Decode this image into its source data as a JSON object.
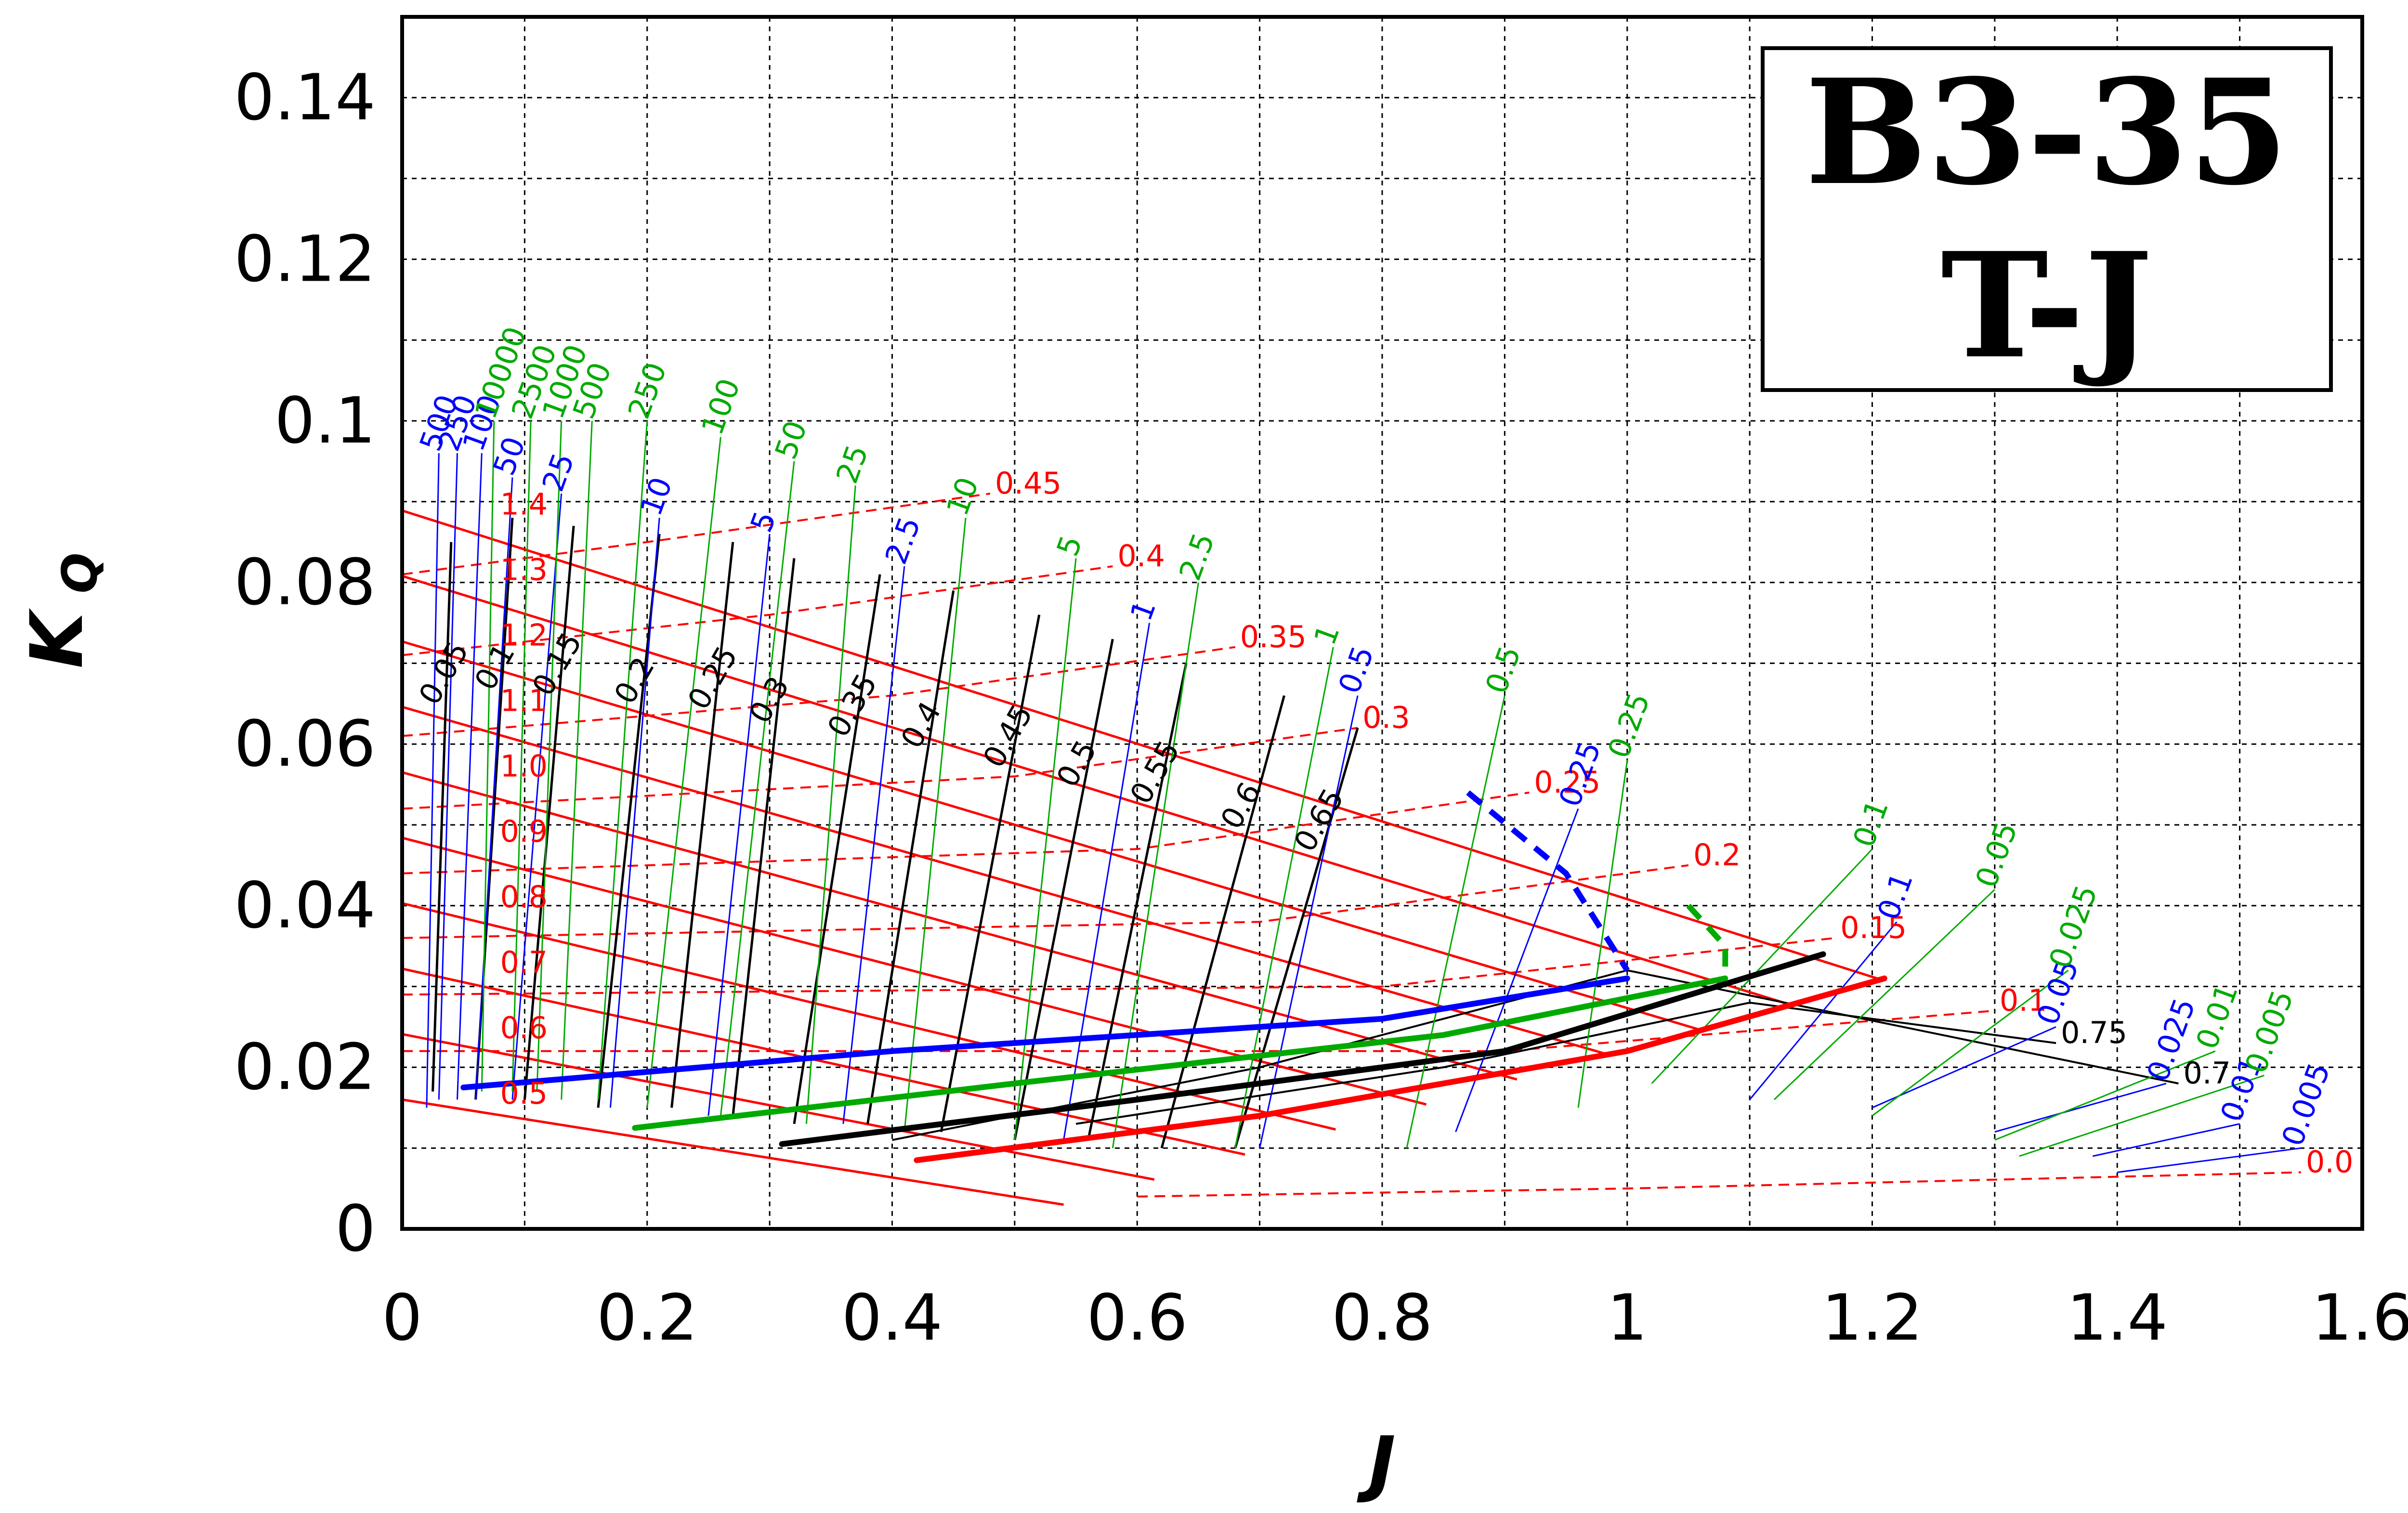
{
  "chart_data": {
    "type": "line",
    "title": [
      "B3-35",
      "T-J"
    ],
    "xlabel": "J",
    "ylabel_main": "K",
    "ylabel_sub": "Q",
    "xlim": [
      0,
      1.6
    ],
    "ylim": [
      0,
      0.15
    ],
    "xticks": [
      "0",
      "0.2",
      "0.4",
      "0.6",
      "0.8",
      "1",
      "1.2",
      "1.4",
      "1.6"
    ],
    "yticks": [
      "0",
      "0.02",
      "0.04",
      "0.06",
      "0.08",
      "0.1",
      "0.12",
      "0.14"
    ],
    "grid": true,
    "colors": {
      "pitch": "#ff0000",
      "efficiency": "#000000",
      "bp": "#0000ff",
      "delta": "#00aa00"
    },
    "pitch_solid_values": [
      0.5,
      0.6,
      0.7,
      0.8,
      0.9,
      1.0,
      1.1,
      1.2,
      1.3,
      1.4
    ],
    "pitch_solid_labels": [
      "0.5",
      "0.6",
      "0.7",
      "0.8",
      "0.9",
      "1.0",
      "1.1",
      "1.2",
      "1.3",
      "1.4"
    ],
    "slip_lines": [
      {
        "label": "0.45",
        "x": [
          0.0,
          0.2,
          0.48
        ],
        "y": [
          0.081,
          0.085,
          0.091
        ]
      },
      {
        "label": "0.4",
        "x": [
          0.0,
          0.3,
          0.58
        ],
        "y": [
          0.071,
          0.076,
          0.082
        ]
      },
      {
        "label": "0.35",
        "x": [
          0.0,
          0.4,
          0.68
        ],
        "y": [
          0.061,
          0.066,
          0.072
        ]
      },
      {
        "label": "0.3",
        "x": [
          0.0,
          0.5,
          0.78
        ],
        "y": [
          0.052,
          0.056,
          0.062
        ]
      },
      {
        "label": "0.25",
        "x": [
          0.0,
          0.6,
          0.92
        ],
        "y": [
          0.044,
          0.047,
          0.054
        ]
      },
      {
        "label": "0.2",
        "x": [
          0.0,
          0.7,
          1.05
        ],
        "y": [
          0.036,
          0.038,
          0.045
        ]
      },
      {
        "label": "0.15",
        "x": [
          0.0,
          0.8,
          1.17
        ],
        "y": [
          0.029,
          0.03,
          0.036
        ]
      },
      {
        "label": "0.1",
        "x": [
          0.0,
          0.9,
          1.3
        ],
        "y": [
          0.022,
          0.022,
          0.027
        ]
      },
      {
        "label": "0.0",
        "x": [
          0.6,
          1.0,
          1.55
        ],
        "y": [
          0.004,
          0.005,
          0.007
        ]
      }
    ],
    "efficiency_curves": [
      {
        "label": "0.05",
        "x": [
          0.025,
          0.04
        ],
        "y": [
          0.017,
          0.085
        ]
      },
      {
        "label": "0.1",
        "x": [
          0.06,
          0.09
        ],
        "y": [
          0.016,
          0.088
        ]
      },
      {
        "label": "0.15",
        "x": [
          0.1,
          0.14
        ],
        "y": [
          0.016,
          0.087
        ]
      },
      {
        "label": "0.2",
        "x": [
          0.16,
          0.21
        ],
        "y": [
          0.015,
          0.086
        ]
      },
      {
        "label": "0.25",
        "x": [
          0.22,
          0.27
        ],
        "y": [
          0.015,
          0.085
        ]
      },
      {
        "label": "0.3",
        "x": [
          0.27,
          0.32
        ],
        "y": [
          0.014,
          0.083
        ]
      },
      {
        "label": "0.35",
        "x": [
          0.32,
          0.39
        ],
        "y": [
          0.013,
          0.081
        ]
      },
      {
        "label": "0.4",
        "x": [
          0.38,
          0.45
        ],
        "y": [
          0.013,
          0.079
        ]
      },
      {
        "label": "0.45",
        "x": [
          0.44,
          0.52
        ],
        "y": [
          0.012,
          0.076
        ]
      },
      {
        "label": "0.5",
        "x": [
          0.5,
          0.58
        ],
        "y": [
          0.011,
          0.073
        ]
      },
      {
        "label": "0.55",
        "x": [
          0.56,
          0.64
        ],
        "y": [
          0.011,
          0.07
        ]
      },
      {
        "label": "0.6",
        "x": [
          0.62,
          0.72
        ],
        "y": [
          0.01,
          0.066
        ]
      },
      {
        "label": "0.65",
        "x": [
          0.68,
          0.78
        ],
        "y": [
          0.01,
          0.062
        ]
      }
    ],
    "efficiency_loops": [
      {
        "label": "0.7",
        "x": [
          0.4,
          0.7,
          1.0,
          1.45
        ],
        "y": [
          0.011,
          0.02,
          0.032,
          0.018
        ]
      },
      {
        "label": "0.75",
        "x": [
          0.55,
          0.85,
          1.1,
          1.35
        ],
        "y": [
          0.013,
          0.02,
          0.028,
          0.023
        ]
      }
    ],
    "bp_curves": [
      {
        "label": "500",
        "x": [
          0.02,
          0.03
        ],
        "y": [
          0.015,
          0.096
        ]
      },
      {
        "label": "250",
        "x": [
          0.03,
          0.045
        ],
        "y": [
          0.016,
          0.096
        ]
      },
      {
        "label": "100",
        "x": [
          0.045,
          0.065
        ],
        "y": [
          0.016,
          0.096
        ]
      },
      {
        "label": "50",
        "x": [
          0.06,
          0.09
        ],
        "y": [
          0.016,
          0.093
        ]
      },
      {
        "label": "25",
        "x": [
          0.09,
          0.13
        ],
        "y": [
          0.016,
          0.091
        ]
      },
      {
        "label": "10",
        "x": [
          0.17,
          0.21
        ],
        "y": [
          0.015,
          0.088
        ]
      },
      {
        "label": "5",
        "x": [
          0.25,
          0.3
        ],
        "y": [
          0.014,
          0.086
        ]
      },
      {
        "label": "2.5",
        "x": [
          0.36,
          0.41
        ],
        "y": [
          0.013,
          0.082
        ]
      },
      {
        "label": "1",
        "x": [
          0.54,
          0.61
        ],
        "y": [
          0.011,
          0.075
        ]
      },
      {
        "label": "0.5",
        "x": [
          0.7,
          0.78
        ],
        "y": [
          0.01,
          0.066
        ]
      },
      {
        "label": "0.25",
        "x": [
          0.86,
          0.96
        ],
        "y": [
          0.012,
          0.052
        ]
      },
      {
        "label": "0.1",
        "x": [
          1.1,
          1.22
        ],
        "y": [
          0.016,
          0.038
        ]
      },
      {
        "label": "0.05",
        "x": [
          1.2,
          1.35
        ],
        "y": [
          0.015,
          0.025
        ]
      },
      {
        "label": "0.025",
        "x": [
          1.3,
          1.44
        ],
        "y": [
          0.012,
          0.018
        ]
      },
      {
        "label": "0.01",
        "x": [
          1.38,
          1.5
        ],
        "y": [
          0.009,
          0.013
        ]
      },
      {
        "label": "0.005",
        "x": [
          1.4,
          1.55
        ],
        "y": [
          0.007,
          0.01
        ]
      }
    ],
    "delta_curves": [
      {
        "label": "10000",
        "x": [
          0.065,
          0.075
        ],
        "y": [
          0.017,
          0.1
        ]
      },
      {
        "label": "2500",
        "x": [
          0.09,
          0.105
        ],
        "y": [
          0.017,
          0.1
        ]
      },
      {
        "label": "1000",
        "x": [
          0.11,
          0.13
        ],
        "y": [
          0.017,
          0.1
        ]
      },
      {
        "label": "500",
        "x": [
          0.13,
          0.155
        ],
        "y": [
          0.016,
          0.1
        ]
      },
      {
        "label": "250",
        "x": [
          0.16,
          0.2
        ],
        "y": [
          0.016,
          0.1
        ]
      },
      {
        "label": "100",
        "x": [
          0.2,
          0.26
        ],
        "y": [
          0.015,
          0.098
        ]
      },
      {
        "label": "50",
        "x": [
          0.26,
          0.32
        ],
        "y": [
          0.014,
          0.095
        ]
      },
      {
        "label": "25",
        "x": [
          0.33,
          0.37
        ],
        "y": [
          0.013,
          0.092
        ]
      },
      {
        "label": "10",
        "x": [
          0.41,
          0.46
        ],
        "y": [
          0.012,
          0.088
        ]
      },
      {
        "label": "5",
        "x": [
          0.5,
          0.55
        ],
        "y": [
          0.011,
          0.083
        ]
      },
      {
        "label": "2.5",
        "x": [
          0.58,
          0.65
        ],
        "y": [
          0.01,
          0.08
        ]
      },
      {
        "label": "1",
        "x": [
          0.68,
          0.76
        ],
        "y": [
          0.01,
          0.072
        ]
      },
      {
        "label": "0.5",
        "x": [
          0.82,
          0.9
        ],
        "y": [
          0.01,
          0.066
        ]
      },
      {
        "label": "0.25",
        "x": [
          0.96,
          1.0
        ],
        "y": [
          0.015,
          0.058
        ]
      },
      {
        "label": "0.1",
        "x": [
          1.02,
          1.2
        ],
        "y": [
          0.018,
          0.047
        ]
      },
      {
        "label": "0.05",
        "x": [
          1.12,
          1.3
        ],
        "y": [
          0.016,
          0.042
        ]
      },
      {
        "label": "0.025",
        "x": [
          1.2,
          1.36
        ],
        "y": [
          0.014,
          0.032
        ]
      },
      {
        "label": "0.01",
        "x": [
          1.3,
          1.48
        ],
        "y": [
          0.011,
          0.022
        ]
      },
      {
        "label": "0.005",
        "x": [
          1.32,
          1.52
        ],
        "y": [
          0.009,
          0.019
        ]
      }
    ],
    "optimum_lines": [
      {
        "color": "#0000ff",
        "x": [
          0.05,
          0.4,
          0.8,
          1.0
        ],
        "y": [
          0.0175,
          0.022,
          0.026,
          0.031
        ]
      },
      {
        "color": "#00aa00",
        "x": [
          0.19,
          0.5,
          0.85,
          1.08
        ],
        "y": [
          0.0125,
          0.018,
          0.024,
          0.031
        ]
      },
      {
        "color": "#000000",
        "x": [
          0.31,
          0.6,
          0.9,
          1.16
        ],
        "y": [
          0.0105,
          0.016,
          0.022,
          0.034
        ]
      },
      {
        "color": "#ff0000",
        "x": [
          0.42,
          0.7,
          1.0,
          1.21
        ],
        "y": [
          0.0085,
          0.014,
          0.022,
          0.031
        ]
      }
    ],
    "dashed_blue": {
      "x": [
        0.87,
        0.95,
        1.0
      ],
      "y": [
        0.054,
        0.044,
        0.032
      ]
    },
    "dashed_green": {
      "x": [
        1.05,
        1.08,
        1.08
      ],
      "y": [
        0.04,
        0.035,
        0.031
      ]
    }
  }
}
